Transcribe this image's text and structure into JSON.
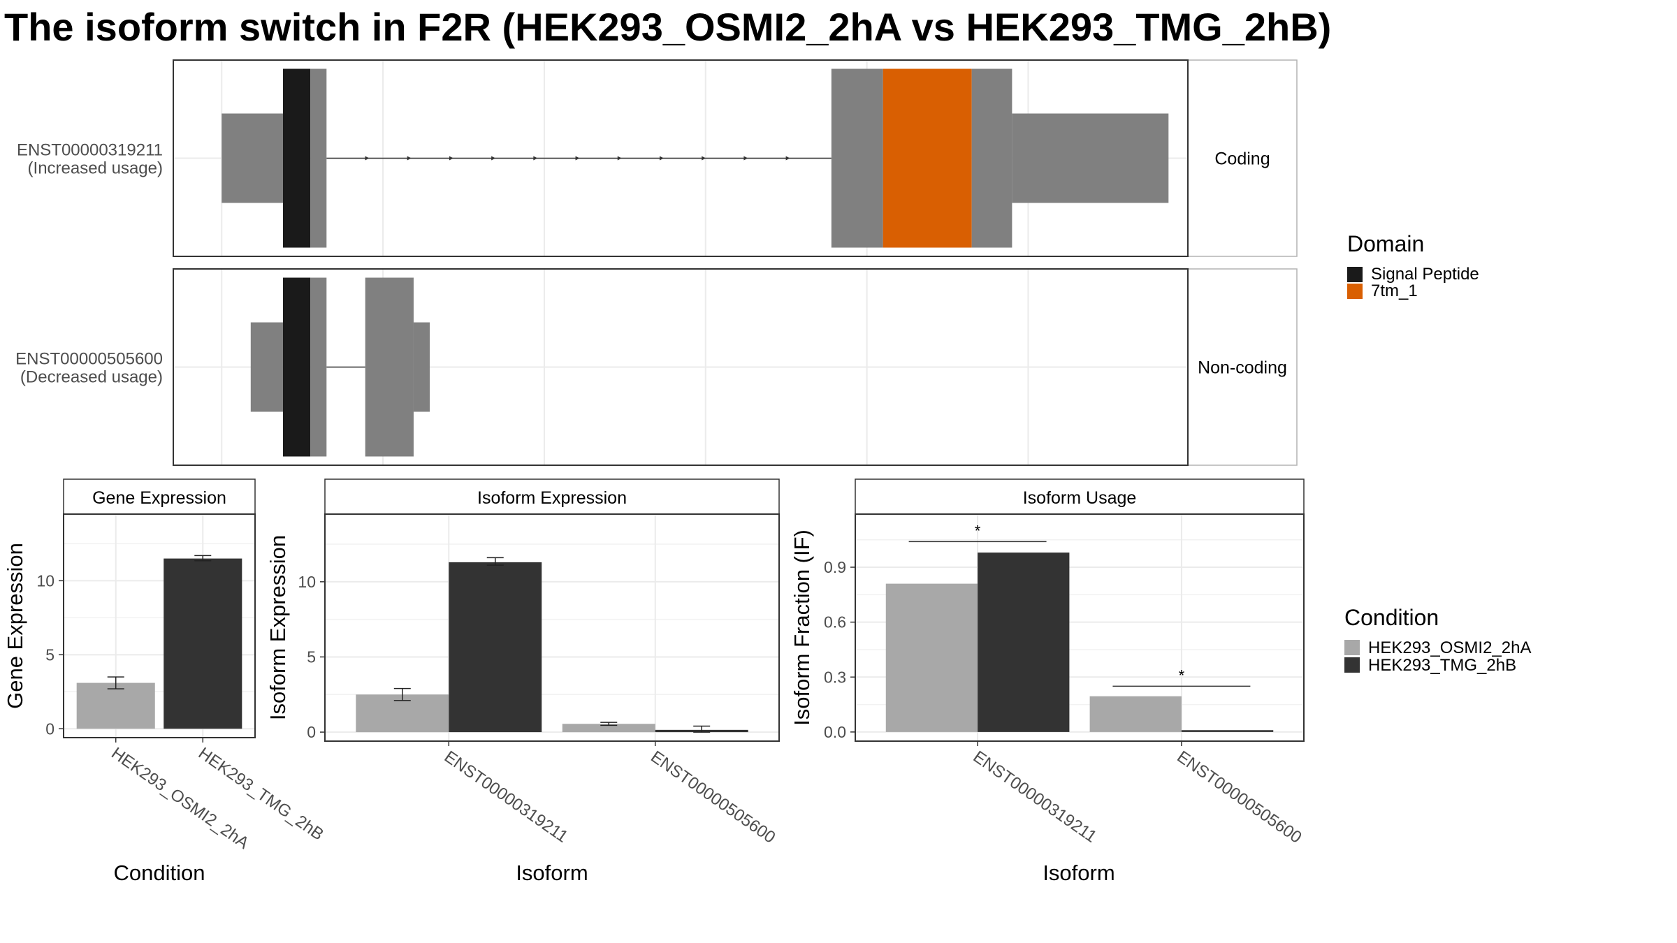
{
  "title": "The isoform switch in F2R (HEK293_OSMI2_2hA vs HEK293_TMG_2hB)",
  "colors": {
    "exon": "#808080",
    "signal_peptide": "#1a1a1a",
    "domain_7tm_1": "#d95f02",
    "cond_a": "#a8a8a8",
    "cond_b": "#333333",
    "grid": "#ebebeb",
    "strip_fill": "#ffffff"
  },
  "transcripts": [
    {
      "id": "ENST00000319211",
      "usage": "(Increased usage)",
      "coding_label": "Coding",
      "strand": "+",
      "segments": [
        {
          "start": 0.0,
          "end": 0.38,
          "kind": "utr"
        },
        {
          "start": 0.38,
          "end": 0.55,
          "kind": "signal_peptide"
        },
        {
          "start": 0.55,
          "end": 0.65,
          "kind": "cds"
        },
        {
          "start": 3.78,
          "end": 4.1,
          "kind": "cds"
        },
        {
          "start": 4.1,
          "end": 4.65,
          "kind": "domain_7tm_1"
        },
        {
          "start": 4.65,
          "end": 4.9,
          "kind": "cds"
        },
        {
          "start": 4.9,
          "end": 5.87,
          "kind": "utr"
        }
      ],
      "introns": [
        {
          "start": 0.65,
          "end": 3.78
        }
      ]
    },
    {
      "id": "ENST00000505600",
      "usage": "(Decreased usage)",
      "coding_label": "Non-coding",
      "strand": "",
      "segments": [
        {
          "start": 0.18,
          "end": 0.38,
          "kind": "utr"
        },
        {
          "start": 0.38,
          "end": 0.55,
          "kind": "signal_peptide"
        },
        {
          "start": 0.55,
          "end": 0.65,
          "kind": "cds"
        },
        {
          "start": 0.89,
          "end": 1.19,
          "kind": "cds"
        },
        {
          "start": 1.19,
          "end": 1.29,
          "kind": "utr"
        }
      ],
      "introns": [
        {
          "start": 0.65,
          "end": 0.89
        }
      ]
    }
  ],
  "domain_legend": {
    "title": "Domain",
    "items": [
      {
        "label": "Signal Peptide",
        "color": "#1a1a1a"
      },
      {
        "label": "7tm_1",
        "color": "#d95f02"
      }
    ]
  },
  "condition_legend": {
    "title": "Condition",
    "items": [
      {
        "label": "HEK293_OSMI2_2hA",
        "color": "#a8a8a8"
      },
      {
        "label": "HEK293_TMG_2hB",
        "color": "#333333"
      }
    ]
  },
  "chart_data": [
    {
      "type": "bar",
      "title": "Gene Expression",
      "xlabel": "Condition",
      "ylabel": "Gene Expression",
      "categories": [
        "HEK293_OSMI2_2hA",
        "HEK293_TMG_2hB"
      ],
      "values": [
        3.1,
        11.5
      ],
      "errors": [
        [
          2.7,
          3.5
        ],
        [
          11.35,
          11.7
        ]
      ],
      "ylim": [
        -0.6,
        14.5
      ],
      "yticks": [
        0,
        5,
        10
      ],
      "grid": true
    },
    {
      "type": "bar",
      "title": "Isoform Expression",
      "xlabel": "Isoform",
      "ylabel": "Isoform Expression",
      "categories": [
        "ENST00000319211",
        "ENST00000505600"
      ],
      "series": [
        {
          "name": "HEK293_OSMI2_2hA",
          "values": [
            2.5,
            0.55
          ],
          "errors": [
            [
              2.1,
              2.9
            ],
            [
              0.45,
              0.65
            ]
          ]
        },
        {
          "name": "HEK293_TMG_2hB",
          "values": [
            11.3,
            0.15
          ],
          "errors": [
            [
              11.1,
              11.6
            ],
            [
              0.0,
              0.4
            ]
          ]
        }
      ],
      "ylim": [
        -0.6,
        14.5
      ],
      "yticks": [
        0,
        5,
        10
      ],
      "grid": true
    },
    {
      "type": "bar",
      "title": "Isoform Usage",
      "xlabel": "Isoform",
      "ylabel": "Isoform Fraction (IF)",
      "categories": [
        "ENST00000319211",
        "ENST00000505600"
      ],
      "series": [
        {
          "name": "HEK293_OSMI2_2hA",
          "values": [
            0.81,
            0.195
          ]
        },
        {
          "name": "HEK293_TMG_2hB",
          "values": [
            0.98,
            0.01
          ]
        }
      ],
      "significance": [
        {
          "category": "ENST00000319211",
          "marker": "*",
          "y": 1.04
        },
        {
          "category": "ENST00000505600",
          "marker": "*",
          "y": 0.25
        }
      ],
      "ylim": [
        -0.05,
        1.19
      ],
      "yticks": [
        0.0,
        0.3,
        0.6,
        0.9
      ],
      "tick_labels": [
        "0.0",
        "0.3",
        "0.6",
        "0.9"
      ],
      "grid": true
    }
  ]
}
